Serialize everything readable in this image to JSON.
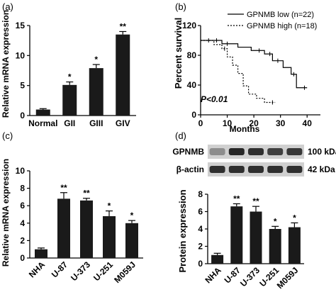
{
  "panels": {
    "a": "(a)",
    "b": "(b)",
    "c": "(c)",
    "d": "(d)"
  },
  "chart_data": [
    {
      "panel": "(a)",
      "type": "bar",
      "categories": [
        "Normal",
        "GII",
        "GIII",
        "GIV"
      ],
      "values": [
        1.0,
        5.1,
        7.9,
        13.5
      ],
      "errors": [
        0.15,
        0.5,
        0.6,
        0.5
      ],
      "significance": [
        "",
        "*",
        "*",
        "**"
      ],
      "ylabel": "Relative mRNA expression",
      "ylim": [
        0,
        15
      ],
      "yticks": [
        "0",
        "5",
        "10",
        "15"
      ],
      "bar_color": "#1a1a1a"
    },
    {
      "panel": "(b)",
      "type": "line",
      "subtype": "kaplan-meier",
      "ylabel": "Percent survival",
      "xlabel": "Months",
      "xlim": [
        0,
        45
      ],
      "ylim": [
        0,
        120
      ],
      "xticks": [
        "0",
        "10",
        "20",
        "30",
        "40"
      ],
      "yticks": [
        "0",
        "40",
        "80",
        "120"
      ],
      "annotation": "P<0.01",
      "legend_position": "top-right",
      "series": [
        {
          "name": "GPNMB low (n=22)",
          "style": "solid",
          "x": [
            0,
            8,
            8,
            14,
            14,
            19,
            19,
            24,
            24,
            27,
            27,
            31,
            31,
            34,
            34,
            36,
            36,
            40
          ],
          "y": [
            100,
            100,
            95.5,
            95.5,
            90.9,
            90.9,
            86.4,
            86.4,
            81.8,
            81.8,
            72.7,
            72.7,
            63.6,
            63.6,
            54.5,
            54.5,
            36.4,
            36.4
          ],
          "censor_x": [
            3,
            6,
            10,
            22,
            26,
            29,
            35,
            39
          ],
          "censor_y": [
            100,
            100,
            95.5,
            86.4,
            81.8,
            72.7,
            54.5,
            36.4
          ]
        },
        {
          "name": "GPNMB high (n=18)",
          "style": "dashed",
          "x": [
            0,
            5,
            5,
            8,
            8,
            10,
            10,
            12,
            12,
            14,
            14,
            16,
            16,
            18,
            18,
            21,
            21,
            24,
            24,
            28
          ],
          "y": [
            100,
            100,
            94.4,
            94.4,
            88.9,
            88.9,
            77.8,
            77.8,
            66.7,
            66.7,
            55.6,
            55.6,
            38.9,
            38.9,
            27.8,
            27.8,
            22.2,
            22.2,
            16.7,
            16.7
          ],
          "censor_x": [
            9,
            27
          ],
          "censor_y": [
            88.9,
            16.7
          ]
        }
      ]
    },
    {
      "panel": "(c)",
      "type": "bar",
      "categories": [
        "NHA",
        "U-87",
        "U-373",
        "U-251",
        "M059J"
      ],
      "values": [
        1.0,
        6.8,
        6.6,
        4.8,
        4.0
      ],
      "errors": [
        0.15,
        0.7,
        0.25,
        0.6,
        0.3
      ],
      "significance": [
        "",
        "**",
        "**",
        "*",
        "*"
      ],
      "ylabel": "Relative mRNA expression",
      "ylim": [
        0,
        10
      ],
      "yticks": [
        "0",
        "2",
        "4",
        "6",
        "8",
        "10"
      ],
      "bar_color": "#1a1a1a"
    },
    {
      "panel": "(d)",
      "type": "bar",
      "categories": [
        "NHA",
        "U-87",
        "U-373",
        "U-251",
        "M059J"
      ],
      "values": [
        1.0,
        6.6,
        6.0,
        4.0,
        4.2
      ],
      "errors": [
        0.2,
        0.3,
        0.6,
        0.3,
        0.5
      ],
      "significance": [
        "",
        "**",
        "**",
        "*",
        "*"
      ],
      "ylabel": "Protein expression",
      "ylim": [
        0,
        8
      ],
      "yticks": [
        "0",
        "2",
        "4",
        "6",
        "8"
      ],
      "bar_color": "#1a1a1a",
      "western_blot": {
        "rows": [
          {
            "name": "GPNMB",
            "size": "100 kDa",
            "intensity": [
              0.35,
              0.95,
              0.9,
              0.8,
              0.85
            ]
          },
          {
            "name": "β-actin",
            "size": "42 kDa",
            "intensity": [
              0.9,
              0.9,
              0.9,
              0.9,
              0.9
            ]
          }
        ]
      }
    }
  ]
}
